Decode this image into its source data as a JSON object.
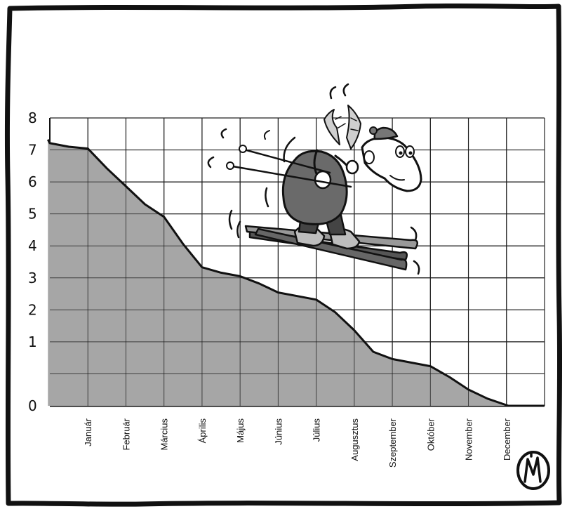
{
  "chart_data": {
    "type": "area",
    "title": "",
    "xlabel": "",
    "ylabel": "",
    "ylim": [
      0,
      8
    ],
    "yticks": [
      0,
      1,
      2,
      3,
      4,
      5,
      6,
      7,
      8
    ],
    "grid": true,
    "categories": [
      "Január",
      "Február",
      "Március",
      "Április",
      "Május",
      "Június",
      "Július",
      "Augusztus",
      "Szeptember",
      "Október",
      "November",
      "December"
    ],
    "series": [
      {
        "x": [
          -0.05,
          0,
          0.5,
          1,
          1.5,
          2,
          2.5,
          3,
          3.5,
          4,
          4.5,
          5,
          5.5,
          6,
          6.5,
          7,
          7.5,
          8,
          8.5,
          9,
          9.5,
          10,
          10.5,
          11,
          11.5,
          12.05
        ],
        "values": [
          7.4,
          7.3,
          7.2,
          7.15,
          6.6,
          6.1,
          5.6,
          5.25,
          4.5,
          3.85,
          3.7,
          3.6,
          3.4,
          3.15,
          3.05,
          2.95,
          2.6,
          2.1,
          1.5,
          1.3,
          1.2,
          1.1,
          0.8,
          0.45,
          0.2,
          0
        ],
        "fill": "#a6a6a6"
      }
    ],
    "colors": {
      "area": "#a6a6a6",
      "line": "#111111",
      "grid": "#222222"
    },
    "logo_text": "MJ"
  }
}
